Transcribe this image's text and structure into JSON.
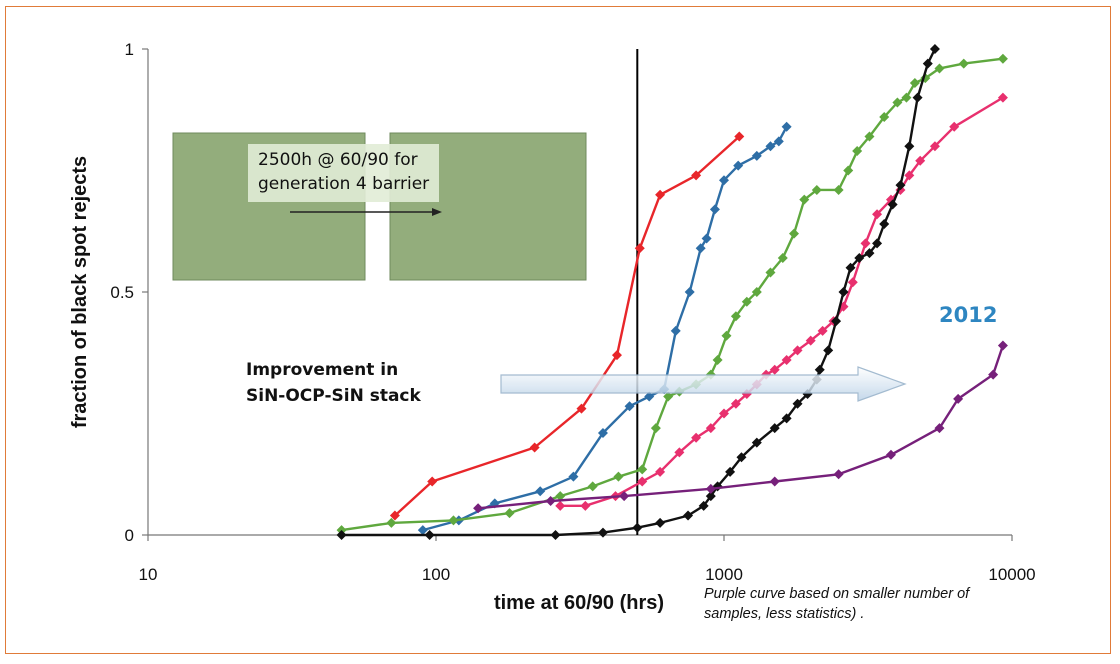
{
  "chart_data": {
    "type": "line",
    "xscale": "log",
    "xlim": [
      10,
      10000
    ],
    "ylim": [
      0,
      1
    ],
    "xticks": [
      "10",
      "100",
      "1000",
      "10000"
    ],
    "yticks": [
      "0",
      "0.5",
      "1"
    ],
    "xlabel": "time at 60/90 (hrs)",
    "ylabel": "fraction of black spot rejects",
    "grid": false,
    "legend": "none",
    "vline_x": 500,
    "annotations": {
      "inset_text_line1": "2500h @ 60/90 for",
      "inset_text_line2": "generation 4 barrier",
      "improvement_line1": "Improvement in",
      "improvement_line2": "SiN-OCP-SiN stack",
      "year_label": "2012",
      "note_line1": "Purple curve based on smaller number of",
      "note_line2": "samples, less statistics) ."
    },
    "series": [
      {
        "color": "#e8262a",
        "points": [
          [
            72,
            0.04
          ],
          [
            97,
            0.11
          ],
          [
            220,
            0.18
          ],
          [
            320,
            0.26
          ],
          [
            425,
            0.37
          ],
          [
            510,
            0.59
          ],
          [
            600,
            0.7
          ],
          [
            800,
            0.74
          ],
          [
            1130,
            0.82
          ]
        ]
      },
      {
        "color": "#2e6ea6",
        "points": [
          [
            90,
            0.01
          ],
          [
            120,
            0.03
          ],
          [
            160,
            0.065
          ],
          [
            230,
            0.09
          ],
          [
            300,
            0.12
          ],
          [
            380,
            0.21
          ],
          [
            470,
            0.265
          ],
          [
            550,
            0.285
          ],
          [
            620,
            0.3
          ],
          [
            680,
            0.42
          ],
          [
            760,
            0.5
          ],
          [
            830,
            0.59
          ],
          [
            870,
            0.61
          ],
          [
            930,
            0.67
          ],
          [
            1000,
            0.73
          ],
          [
            1120,
            0.76
          ],
          [
            1300,
            0.78
          ],
          [
            1450,
            0.8
          ],
          [
            1550,
            0.81
          ],
          [
            1650,
            0.84
          ]
        ]
      },
      {
        "color": "#5fa83e",
        "points": [
          [
            47,
            0.01
          ],
          [
            70,
            0.025
          ],
          [
            115,
            0.03
          ],
          [
            180,
            0.045
          ],
          [
            270,
            0.08
          ],
          [
            350,
            0.1
          ],
          [
            430,
            0.12
          ],
          [
            520,
            0.135
          ],
          [
            580,
            0.22
          ],
          [
            640,
            0.285
          ],
          [
            700,
            0.295
          ],
          [
            800,
            0.31
          ],
          [
            900,
            0.33
          ],
          [
            950,
            0.36
          ],
          [
            1020,
            0.41
          ],
          [
            1100,
            0.45
          ],
          [
            1200,
            0.48
          ],
          [
            1300,
            0.5
          ],
          [
            1450,
            0.54
          ],
          [
            1600,
            0.57
          ],
          [
            1750,
            0.62
          ],
          [
            1900,
            0.69
          ],
          [
            2100,
            0.71
          ],
          [
            2500,
            0.71
          ],
          [
            2700,
            0.75
          ],
          [
            2900,
            0.79
          ],
          [
            3200,
            0.82
          ],
          [
            3600,
            0.86
          ],
          [
            4000,
            0.89
          ],
          [
            4300,
            0.9
          ],
          [
            4600,
            0.93
          ],
          [
            5000,
            0.94
          ],
          [
            5600,
            0.96
          ],
          [
            6800,
            0.97
          ],
          [
            9300,
            0.98
          ]
        ]
      },
      {
        "color": "#e8306e",
        "points": [
          [
            270,
            0.06
          ],
          [
            330,
            0.06
          ],
          [
            420,
            0.08
          ],
          [
            520,
            0.11
          ],
          [
            600,
            0.13
          ],
          [
            700,
            0.17
          ],
          [
            800,
            0.2
          ],
          [
            900,
            0.22
          ],
          [
            1000,
            0.25
          ],
          [
            1100,
            0.27
          ],
          [
            1200,
            0.29
          ],
          [
            1300,
            0.31
          ],
          [
            1400,
            0.33
          ],
          [
            1500,
            0.34
          ],
          [
            1650,
            0.36
          ],
          [
            1800,
            0.38
          ],
          [
            2000,
            0.4
          ],
          [
            2200,
            0.42
          ],
          [
            2400,
            0.44
          ],
          [
            2600,
            0.47
          ],
          [
            2800,
            0.52
          ],
          [
            3100,
            0.6
          ],
          [
            3400,
            0.66
          ],
          [
            3800,
            0.69
          ],
          [
            4100,
            0.71
          ],
          [
            4400,
            0.74
          ],
          [
            4800,
            0.77
          ],
          [
            5400,
            0.8
          ],
          [
            6300,
            0.84
          ],
          [
            9300,
            0.9
          ]
        ]
      },
      {
        "color": "#111111",
        "points": [
          [
            47,
            0.0
          ],
          [
            95,
            0.0
          ],
          [
            260,
            0.0
          ],
          [
            380,
            0.005
          ],
          [
            500,
            0.015
          ],
          [
            600,
            0.025
          ],
          [
            750,
            0.04
          ],
          [
            850,
            0.06
          ],
          [
            900,
            0.08
          ],
          [
            950,
            0.1
          ],
          [
            1050,
            0.13
          ],
          [
            1150,
            0.16
          ],
          [
            1300,
            0.19
          ],
          [
            1500,
            0.22
          ],
          [
            1650,
            0.24
          ],
          [
            1800,
            0.27
          ],
          [
            1950,
            0.29
          ],
          [
            2100,
            0.32
          ],
          [
            2150,
            0.34
          ],
          [
            2300,
            0.38
          ],
          [
            2450,
            0.44
          ],
          [
            2600,
            0.5
          ],
          [
            2750,
            0.55
          ],
          [
            2950,
            0.57
          ],
          [
            3200,
            0.58
          ],
          [
            3400,
            0.6
          ],
          [
            3600,
            0.64
          ],
          [
            3850,
            0.68
          ],
          [
            4100,
            0.72
          ],
          [
            4400,
            0.8
          ],
          [
            4700,
            0.9
          ],
          [
            5100,
            0.97
          ],
          [
            5400,
            1.0
          ]
        ]
      },
      {
        "color": "#76207a",
        "points": [
          [
            140,
            0.055
          ],
          [
            250,
            0.07
          ],
          [
            450,
            0.08
          ],
          [
            900,
            0.095
          ],
          [
            1500,
            0.11
          ],
          [
            2500,
            0.125
          ],
          [
            3800,
            0.165
          ],
          [
            5600,
            0.22
          ],
          [
            6500,
            0.28
          ],
          [
            8600,
            0.33
          ],
          [
            9300,
            0.39
          ]
        ]
      }
    ]
  }
}
